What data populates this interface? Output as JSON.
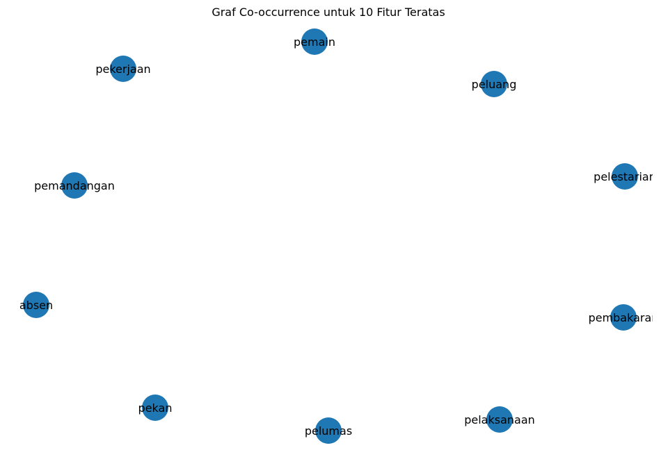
{
  "title": "Graf Co-occurrence untuk 10 Fitur Teratas",
  "node_color": "#1f77b4",
  "label_color": "#000000",
  "nodes": [
    {
      "label": "pemain"
    },
    {
      "label": "pekerjaan"
    },
    {
      "label": "peluang"
    },
    {
      "label": "pemandangan"
    },
    {
      "label": "pelestarian"
    },
    {
      "label": "absen"
    },
    {
      "label": "pembakaran"
    },
    {
      "label": "pekan"
    },
    {
      "label": "pelaksanaan"
    },
    {
      "label": "pelumas"
    }
  ],
  "edges": []
}
